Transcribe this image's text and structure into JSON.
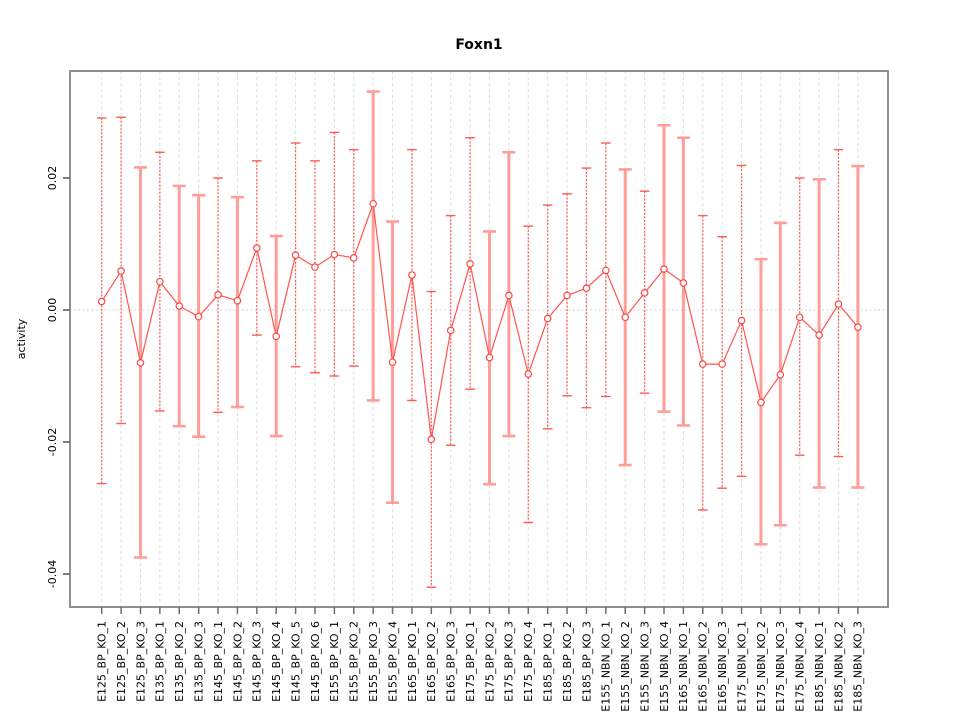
{
  "title": "Foxn1",
  "chart_data": {
    "type": "line",
    "subtype": "points-with-error-bars",
    "title": "Foxn1",
    "xlabel": "",
    "ylabel": "activity",
    "legend": "none",
    "grid": "vertical-dashed-per-category, dotted-line-at-zero",
    "ylim": [
      -0.046,
      0.037
    ],
    "y_ticks": [
      {
        "label": "0.02",
        "value": 0.02
      },
      {
        "label": "0.00",
        "value": 0.0
      },
      {
        "label": "-0.02",
        "value": -0.02
      },
      {
        "label": "-0.04",
        "value": -0.04
      }
    ],
    "categories": [
      "E125_BP_KO_1",
      "E125_BP_KO_2",
      "E125_BP_KO_3",
      "E135_BP_KO_1",
      "E135_BP_KO_2",
      "E135_BP_KO_3",
      "E145_BP_KO_1",
      "E145_BP_KO_2",
      "E145_BP_KO_3",
      "E145_BP_KO_4",
      "E145_BP_KO_5",
      "E145_BP_KO_6",
      "E155_BP_KO_1",
      "E155_BP_KO_2",
      "E155_BP_KO_3",
      "E155_BP_KO_4",
      "E165_BP_KO_1",
      "E165_BP_KO_2",
      "E165_BP_KO_3",
      "E175_BP_KO_1",
      "E175_BP_KO_2",
      "E175_BP_KO_3",
      "E175_BP_KO_4",
      "E185_BP_KO_1",
      "E185_BP_KO_2",
      "E185_BP_KO_3",
      "E155_NBN_KO_1",
      "E155_NBN_KO_2",
      "E155_NBN_KO_3",
      "E155_NBN_KO_4",
      "E165_NBN_KO_1",
      "E165_NBN_KO_2",
      "E165_NBN_KO_3",
      "E175_NBN_KO_1",
      "E175_NBN_KO_2",
      "E175_NBN_KO_3",
      "E175_NBN_KO_4",
      "E185_NBN_KO_1",
      "E185_NBN_KO_2",
      "E185_NBN_KO_3"
    ],
    "series": [
      {
        "name": "activity",
        "centers": [
          0.0013,
          0.0059,
          -0.008,
          0.0043,
          0.0006,
          -0.001,
          0.0023,
          0.0014,
          0.0094,
          -0.004,
          0.0083,
          0.0065,
          0.0084,
          0.0079,
          0.0161,
          -0.0079,
          0.0053,
          -0.0196,
          -0.0031,
          0.007,
          -0.0072,
          0.0022,
          -0.0097,
          -0.0013,
          0.0022,
          0.0033,
          0.006,
          -0.0011,
          0.0026,
          0.0062,
          0.0041,
          -0.0082,
          -0.0082,
          -0.0016,
          -0.014,
          -0.0098,
          -0.0011,
          -0.0038,
          0.0009,
          -0.0026
        ],
        "upper": [
          0.0291,
          0.0292,
          0.0216,
          0.0239,
          0.0188,
          0.0174,
          0.02,
          0.0171,
          0.0226,
          0.0112,
          0.0253,
          0.0226,
          0.0269,
          0.0243,
          0.0331,
          0.0134,
          0.0243,
          0.0028,
          0.0143,
          0.0261,
          0.0119,
          0.0239,
          0.0127,
          0.0159,
          0.0176,
          0.0215,
          0.0253,
          0.0213,
          0.018,
          0.028,
          0.0261,
          0.0143,
          0.0111,
          0.0219,
          0.0077,
          0.0132,
          0.02,
          0.0198,
          0.0243,
          0.0218
        ],
        "lower": [
          -0.0263,
          -0.0172,
          -0.0375,
          -0.0153,
          -0.0176,
          -0.0192,
          -0.0155,
          -0.0147,
          -0.0038,
          -0.0191,
          -0.0086,
          -0.0095,
          -0.01,
          -0.0085,
          -0.0137,
          -0.0292,
          -0.0137,
          -0.042,
          -0.0205,
          -0.012,
          -0.0264,
          -0.0191,
          -0.0322,
          -0.018,
          -0.013,
          -0.0148,
          -0.0131,
          -0.0235,
          -0.0126,
          -0.0154,
          -0.0175,
          -0.0303,
          -0.027,
          -0.0252,
          -0.0355,
          -0.0326,
          -0.022,
          -0.0269,
          -0.0222,
          -0.0269
        ],
        "thick_bar": [
          false,
          false,
          true,
          false,
          true,
          true,
          false,
          true,
          false,
          true,
          false,
          false,
          false,
          false,
          true,
          true,
          false,
          false,
          false,
          false,
          true,
          true,
          false,
          false,
          false,
          false,
          false,
          true,
          false,
          true,
          true,
          false,
          false,
          false,
          true,
          true,
          false,
          true,
          false,
          true
        ]
      }
    ],
    "colors": {
      "point_red": "#ff4742",
      "line_red": "#ff544e",
      "thin_bar_red": "#ff5a54",
      "thick_bar_pink": "#ff9e99",
      "grid_gray": "#dcdcdc",
      "zero_line_gray": "#c8c8c8",
      "box_gray": "#909090",
      "tick_gray": "#6e6e6e",
      "text_black": "#000000"
    }
  }
}
